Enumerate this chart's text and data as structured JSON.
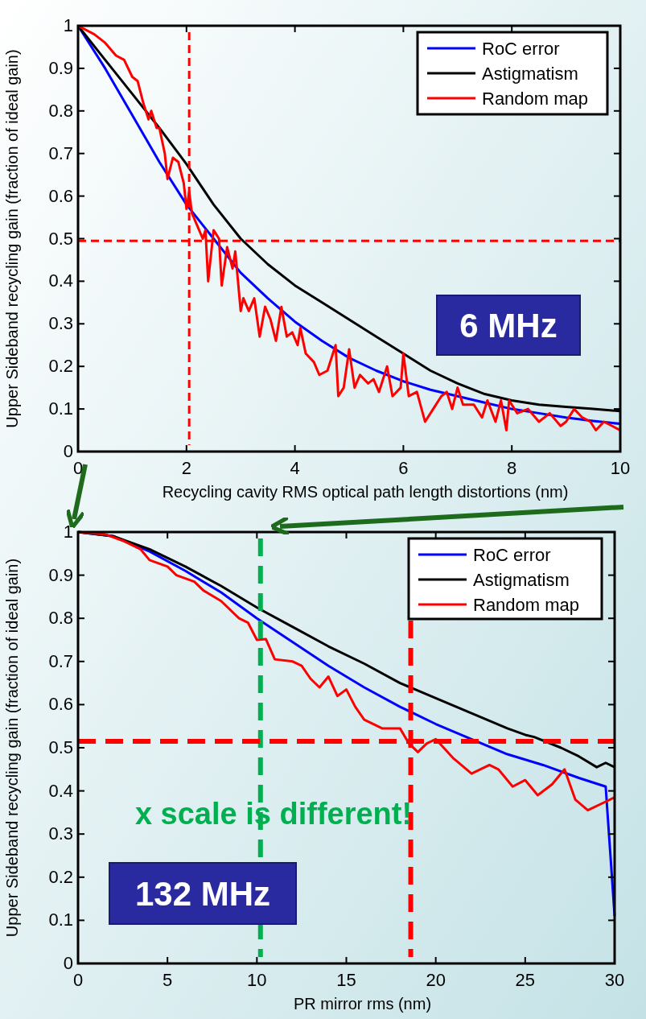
{
  "chart_data": [
    {
      "type": "line",
      "xlabel": "Recycling cavity RMS optical path length distortions (nm)",
      "ylabel": "Upper Sideband recycling gain (fraction of ideal gain)",
      "xlim": [
        0,
        10
      ],
      "ylim": [
        0,
        1
      ],
      "xticks": [
        0,
        2,
        4,
        6,
        8,
        10
      ],
      "yticks": [
        0,
        0.1,
        0.2,
        0.3,
        0.4,
        0.5,
        0.6,
        0.7,
        0.8,
        0.9,
        1
      ],
      "legend": "top right",
      "grid": false,
      "line_style": "solid",
      "series": [
        {
          "name": "RoC error",
          "color": "#0000ff",
          "x": [
            0,
            0.5,
            1,
            1.5,
            2,
            2.5,
            3,
            3.5,
            4,
            4.5,
            5,
            5.5,
            6,
            6.5,
            7,
            7.5,
            8,
            8.5,
            9,
            9.5,
            10
          ],
          "values": [
            1,
            0.9,
            0.79,
            0.68,
            0.58,
            0.5,
            0.42,
            0.36,
            0.305,
            0.26,
            0.22,
            0.19,
            0.165,
            0.145,
            0.13,
            0.115,
            0.1,
            0.09,
            0.08,
            0.072,
            0.065
          ]
        },
        {
          "name": "Astigmatism",
          "color": "#000000",
          "x": [
            0,
            0.5,
            1,
            1.5,
            2,
            2.5,
            3,
            3.5,
            4,
            4.5,
            5,
            5.5,
            6,
            6.5,
            7,
            7.5,
            8,
            8.5,
            9,
            9.5,
            10
          ],
          "values": [
            1,
            0.92,
            0.84,
            0.76,
            0.675,
            0.58,
            0.5,
            0.44,
            0.39,
            0.35,
            0.31,
            0.27,
            0.23,
            0.19,
            0.16,
            0.135,
            0.12,
            0.11,
            0.105,
            0.1,
            0.095
          ]
        },
        {
          "name": "Random map",
          "color": "#ff0000",
          "x": [
            0,
            0.3,
            0.5,
            0.7,
            0.85,
            1,
            1.1,
            1.2,
            1.3,
            1.35,
            1.45,
            1.5,
            1.6,
            1.65,
            1.75,
            1.85,
            1.95,
            2.0,
            2.05,
            2.1,
            2.2,
            2.3,
            2.35,
            2.4,
            2.5,
            2.6,
            2.65,
            2.75,
            2.85,
            2.9,
            3.0,
            3.05,
            3.15,
            3.25,
            3.35,
            3.45,
            3.55,
            3.65,
            3.75,
            3.85,
            3.95,
            4.05,
            4.1,
            4.2,
            4.35,
            4.45,
            4.6,
            4.75,
            4.8,
            4.9,
            5.0,
            5.1,
            5.2,
            5.35,
            5.45,
            5.55,
            5.7,
            5.8,
            5.95,
            6.0,
            6.1,
            6.25,
            6.4,
            6.55,
            6.7,
            6.8,
            6.9,
            7.0,
            7.1,
            7.3,
            7.45,
            7.55,
            7.7,
            7.8,
            7.9,
            7.95,
            8.1,
            8.3,
            8.5,
            8.7,
            8.9,
            9.0,
            9.15,
            9.3,
            9.45,
            9.55,
            9.7,
            9.85,
            10
          ],
          "values": [
            1,
            0.98,
            0.96,
            0.93,
            0.92,
            0.88,
            0.87,
            0.82,
            0.78,
            0.8,
            0.76,
            0.76,
            0.7,
            0.64,
            0.69,
            0.68,
            0.63,
            0.57,
            0.61,
            0.56,
            0.53,
            0.5,
            0.52,
            0.4,
            0.52,
            0.5,
            0.39,
            0.48,
            0.43,
            0.47,
            0.33,
            0.36,
            0.33,
            0.36,
            0.27,
            0.34,
            0.31,
            0.26,
            0.34,
            0.27,
            0.28,
            0.25,
            0.29,
            0.23,
            0.21,
            0.18,
            0.19,
            0.25,
            0.13,
            0.15,
            0.24,
            0.15,
            0.18,
            0.16,
            0.17,
            0.14,
            0.2,
            0.13,
            0.15,
            0.23,
            0.13,
            0.14,
            0.07,
            0.1,
            0.13,
            0.14,
            0.1,
            0.15,
            0.11,
            0.11,
            0.08,
            0.12,
            0.07,
            0.12,
            0.05,
            0.12,
            0.09,
            0.1,
            0.07,
            0.09,
            0.06,
            0.07,
            0.1,
            0.08,
            0.07,
            0.05,
            0.07,
            0.06,
            0.05
          ]
        }
      ],
      "ref_lines": [
        {
          "axis": "x",
          "value": 2.05,
          "color": "#ff0000",
          "line_style": "dashed"
        },
        {
          "axis": "y",
          "value": 0.495,
          "color": "#ff0000",
          "line_style": "dashed"
        }
      ],
      "annotations": [
        "6 MHz"
      ]
    },
    {
      "type": "line",
      "xlabel": "PR mirror rms (nm)",
      "ylabel": "Upper Sideband recycling gain (fraction of ideal gain)",
      "xlim": [
        0,
        30
      ],
      "ylim": [
        0,
        1
      ],
      "xticks": [
        0,
        5,
        10,
        15,
        20,
        25,
        30
      ],
      "yticks": [
        0,
        0.1,
        0.2,
        0.3,
        0.4,
        0.5,
        0.6,
        0.7,
        0.8,
        0.9,
        1
      ],
      "legend": "top right",
      "grid": false,
      "line_style": "solid",
      "series": [
        {
          "name": "RoC error",
          "color": "#0000ff",
          "x": [
            0,
            2,
            4,
            6,
            8,
            10,
            12,
            14,
            16,
            18,
            20,
            22,
            24,
            26,
            28,
            29.5,
            30
          ],
          "values": [
            1,
            0.99,
            0.955,
            0.91,
            0.86,
            0.8,
            0.745,
            0.69,
            0.64,
            0.595,
            0.555,
            0.52,
            0.485,
            0.46,
            0.43,
            0.41,
            0.11
          ]
        },
        {
          "name": "Astigmatism",
          "color": "#000000",
          "x": [
            0,
            2,
            4,
            6,
            8,
            10,
            12,
            14,
            16,
            18,
            20,
            22,
            24,
            25,
            25.5,
            27,
            28,
            29,
            29.5,
            30
          ],
          "values": [
            1,
            0.99,
            0.96,
            0.92,
            0.875,
            0.825,
            0.78,
            0.735,
            0.695,
            0.65,
            0.615,
            0.58,
            0.545,
            0.53,
            0.525,
            0.5,
            0.48,
            0.455,
            0.465,
            0.455
          ]
        },
        {
          "name": "Random map",
          "color": "#ff0000",
          "x": [
            0,
            1.5,
            2.5,
            3.5,
            4,
            5,
            5.5,
            6.5,
            7,
            8,
            9,
            9.5,
            10,
            10.5,
            11,
            12,
            12.5,
            13,
            13.5,
            14,
            14.5,
            15,
            15.5,
            16,
            17,
            18,
            18.5,
            19,
            19.5,
            20,
            21,
            22,
            23,
            23.5,
            24.3,
            25,
            25.7,
            26.5,
            27.2,
            27.8,
            28.5,
            29.5,
            30
          ],
          "values": [
            1,
            0.995,
            0.98,
            0.96,
            0.935,
            0.92,
            0.9,
            0.885,
            0.865,
            0.84,
            0.8,
            0.79,
            0.75,
            0.752,
            0.705,
            0.7,
            0.69,
            0.66,
            0.64,
            0.665,
            0.62,
            0.635,
            0.595,
            0.565,
            0.545,
            0.545,
            0.51,
            0.49,
            0.51,
            0.52,
            0.475,
            0.44,
            0.46,
            0.45,
            0.41,
            0.425,
            0.39,
            0.415,
            0.45,
            0.38,
            0.355,
            0.375,
            0.385
          ]
        }
      ],
      "ref_lines": [
        {
          "axis": "x",
          "value": 10.2,
          "color": "#00b050",
          "line_style": "dashed"
        },
        {
          "axis": "x",
          "value": 18.6,
          "color": "#ff0000",
          "line_style": "dashed"
        },
        {
          "axis": "y",
          "value": 0.515,
          "color": "#ff0000",
          "line_style": "dashed"
        }
      ],
      "annotations": [
        "x scale is different!",
        "132 MHz"
      ]
    }
  ]
}
